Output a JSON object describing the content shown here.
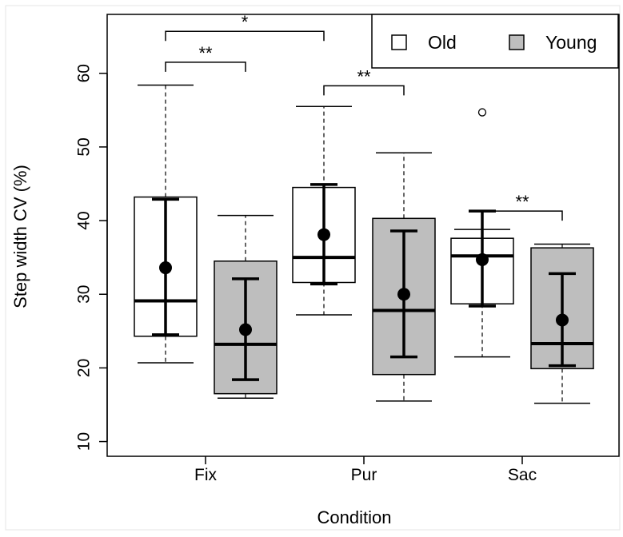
{
  "chart_data": {
    "type": "boxplot",
    "xlabel": "Condition",
    "ylabel": "Step width CV (%)",
    "categories": [
      "Fix",
      "Pur",
      "Sac"
    ],
    "ylim": [
      8,
      68
    ],
    "yticks": [
      10,
      20,
      30,
      40,
      50,
      60
    ],
    "grid": false,
    "legend": {
      "position": "top-right",
      "entries": [
        {
          "name": "Old",
          "color": "#ffffff"
        },
        {
          "name": "Young",
          "color": "#bebebe"
        }
      ]
    },
    "series": [
      {
        "name": "Old",
        "color": "#ffffff",
        "boxes": [
          {
            "category": "Fix",
            "whisker_low": 20.7,
            "q1": 24.3,
            "median": 29.1,
            "q3": 43.2,
            "whisker_high": 58.4,
            "mean": 33.6,
            "ci_low": 24.5,
            "ci_high": 42.9,
            "outliers": []
          },
          {
            "category": "Pur",
            "whisker_low": 27.2,
            "q1": 31.6,
            "median": 35.0,
            "q3": 44.5,
            "whisker_high": 55.5,
            "mean": 38.1,
            "ci_low": 31.4,
            "ci_high": 44.9,
            "outliers": []
          },
          {
            "category": "Sac",
            "whisker_low": 21.5,
            "q1": 28.7,
            "median": 35.2,
            "q3": 37.6,
            "whisker_high": 38.8,
            "mean": 34.7,
            "ci_low": 28.4,
            "ci_high": 41.3,
            "outliers": [
              54.7
            ]
          }
        ]
      },
      {
        "name": "Young",
        "color": "#bebebe",
        "boxes": [
          {
            "category": "Fix",
            "whisker_low": 15.9,
            "q1": 16.5,
            "median": 23.2,
            "q3": 34.5,
            "whisker_high": 40.7,
            "mean": 25.2,
            "ci_low": 18.4,
            "ci_high": 32.1,
            "outliers": []
          },
          {
            "category": "Pur",
            "whisker_low": 15.5,
            "q1": 19.1,
            "median": 27.8,
            "q3": 40.3,
            "whisker_high": 49.2,
            "mean": 30.0,
            "ci_low": 21.5,
            "ci_high": 38.6,
            "outliers": []
          },
          {
            "category": "Sac",
            "whisker_low": 15.2,
            "q1": 19.9,
            "median": 23.3,
            "q3": 36.3,
            "whisker_high": 36.8,
            "mean": 26.5,
            "ci_low": 20.3,
            "ci_high": 32.8,
            "outliers": []
          }
        ]
      }
    ],
    "significance": [
      {
        "label": "**",
        "from": "Fix-Old",
        "to": "Fix-Young",
        "level": 61.5
      },
      {
        "label": "*",
        "from": "Fix-Old",
        "to": "Pur-Old",
        "level": 65.7
      },
      {
        "label": "**",
        "from": "Pur-Old",
        "to": "Pur-Young",
        "level": 58.3
      },
      {
        "label": "**",
        "from": "Sac-Old",
        "to": "Sac-Young",
        "level": 41.3
      }
    ]
  }
}
